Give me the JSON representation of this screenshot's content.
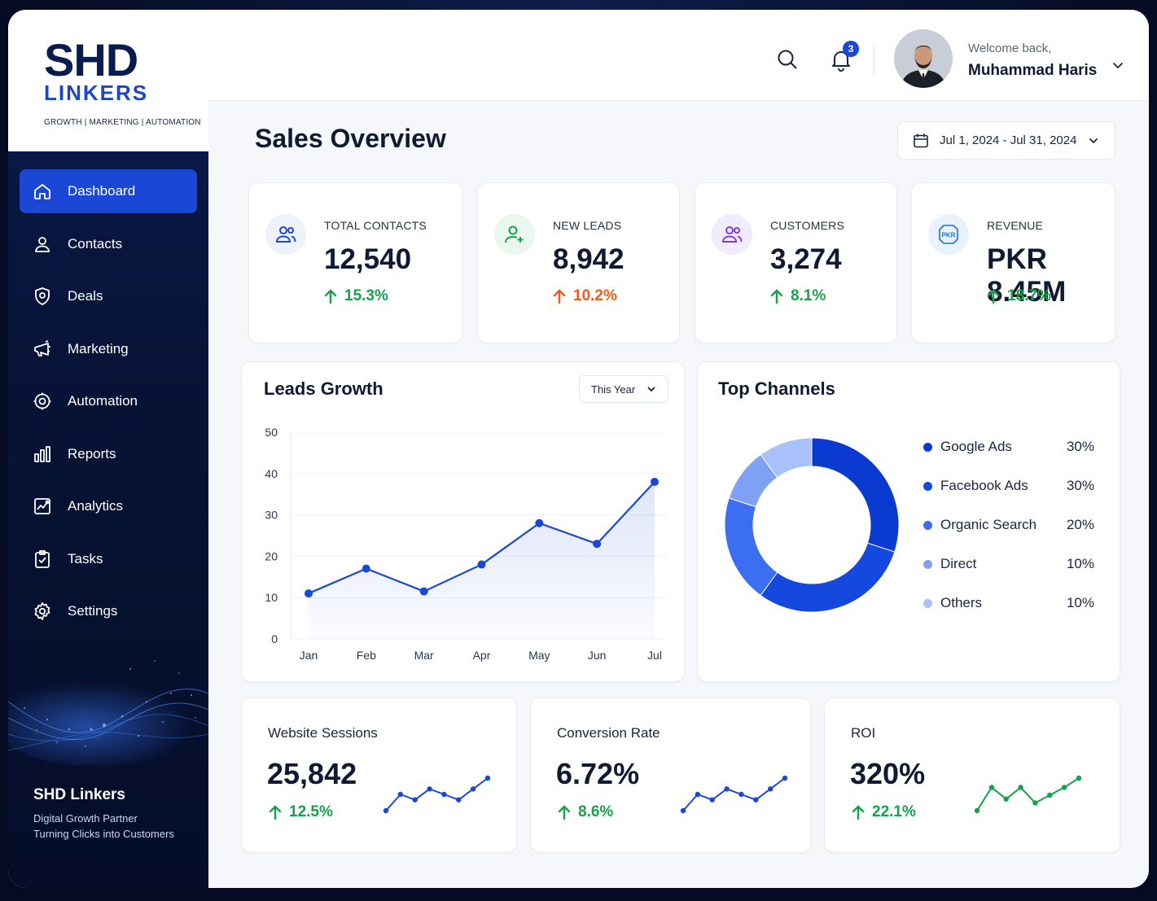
{
  "brand": {
    "logo_main": "SHD",
    "logo_sub": "LINKERS",
    "tagline": "GROWTH | MARKETING | AUTOMATION",
    "footer_title": "SHD Linkers",
    "footer_line1": "Digital Growth Partner",
    "footer_line2": "Turning Clicks into Customers"
  },
  "sidebar": {
    "items": [
      {
        "label": "Dashboard",
        "icon": "home-icon",
        "active": true
      },
      {
        "label": "Contacts",
        "icon": "user-icon"
      },
      {
        "label": "Deals",
        "icon": "shield-icon"
      },
      {
        "label": "Marketing",
        "icon": "megaphone-icon"
      },
      {
        "label": "Automation",
        "icon": "gear-cycle-icon"
      },
      {
        "label": "Reports",
        "icon": "bar-chart-icon"
      },
      {
        "label": "Analytics",
        "icon": "analytics-icon"
      },
      {
        "label": "Tasks",
        "icon": "clipboard-check-icon"
      },
      {
        "label": "Settings",
        "icon": "settings-icon"
      }
    ]
  },
  "header": {
    "notification_count": "3",
    "welcome": "Welcome back,",
    "user_name": "Muhammad Haris"
  },
  "page": {
    "title": "Sales Overview",
    "date_range": "Jul 1, 2024 - Jul 31, 2024"
  },
  "kpis": [
    {
      "label": "TOTAL CONTACTS",
      "value": "12,540",
      "change": "15.3%",
      "trend": "up",
      "color": "#17a24a"
    },
    {
      "label": "NEW LEADS",
      "value": "8,942",
      "change": "10.2%",
      "trend": "up",
      "color": "#f05a1a"
    },
    {
      "label": "CUSTOMERS",
      "value": "3,274",
      "change": "8.1%",
      "trend": "up",
      "color": "#17a24a"
    },
    {
      "label": "REVENUE",
      "value": "PKR 8.45M",
      "change": "18.7%",
      "trend": "up",
      "color": "#17a24a",
      "icon_text": "PKR"
    }
  ],
  "leads_growth": {
    "title": "Leads Growth",
    "filter": "This Year",
    "chart_data": {
      "type": "area",
      "categories": [
        "Jan",
        "Feb",
        "Mar",
        "Apr",
        "May",
        "Jun",
        "Jul"
      ],
      "series": [
        {
          "values": [
            11,
            17,
            11.5,
            18,
            28,
            23,
            38
          ]
        }
      ],
      "ylim": [
        0,
        50
      ],
      "yticks": [
        0,
        10,
        20,
        30,
        40,
        50
      ],
      "grid": true,
      "color": "#1a47d6"
    }
  },
  "top_channels": {
    "title": "Top Channels",
    "chart_data": {
      "type": "pie",
      "categories": [
        "Google Ads",
        "Facebook Ads",
        "Organic Search",
        "Direct",
        "Others"
      ],
      "values": [
        30,
        30,
        20,
        10,
        10
      ],
      "labels": [
        "30%",
        "30%",
        "20%",
        "10%",
        "10%"
      ],
      "colors": [
        "#0a3ad0",
        "#1448de",
        "#3b6ef0",
        "#7ea1f6",
        "#a9c1fa"
      ]
    }
  },
  "mini_stats": [
    {
      "label": "Website Sessions",
      "value": "25,842",
      "change": "12.5%",
      "color": "#1a47d6",
      "spark": [
        2,
        5,
        4,
        6,
        5,
        4,
        6,
        8
      ]
    },
    {
      "label": "Conversion Rate",
      "value": "6.72%",
      "change": "8.6%",
      "color": "#1a47d6",
      "spark": [
        2,
        5,
        4,
        6,
        5,
        4,
        6,
        8
      ]
    },
    {
      "label": "ROI",
      "value": "320%",
      "change": "22.1%",
      "color": "#17a24a",
      "spark": [
        2,
        5,
        3.5,
        5,
        3,
        4,
        5,
        6.2
      ]
    }
  ]
}
